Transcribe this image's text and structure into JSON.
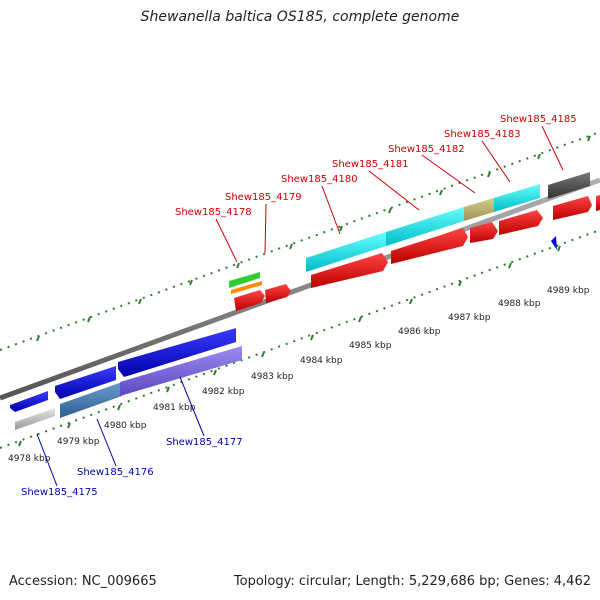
{
  "title": "Shewanella baltica OS185, complete genome",
  "footer": {
    "accession": "Accession: NC_009665",
    "summary": "Topology: circular; Length: 5,229,686 bp; Genes: 4,462"
  },
  "colors": {
    "backbone": "#888888",
    "tick": "#2e7d32",
    "label_top": "#cc0000",
    "label_bottom": "#0000aa",
    "cyan": "#00e5ee",
    "blue": "#0000ee",
    "red": "#ee0000"
  },
  "scale_labels": [
    "4978 kbp",
    "4979 kbp",
    "4980 kbp",
    "4981 kbp",
    "4982 kbp",
    "4983 kbp",
    "4984 kbp",
    "4985 kbp",
    "4986 kbp",
    "4987 kbp",
    "4988 kbp",
    "4989 kbp"
  ],
  "top_labels": [
    "Shew185_4178",
    "Shew185_4179",
    "Shew185_4180",
    "Shew185_4181",
    "Shew185_4182",
    "Shew185_4183",
    "Shew185_4185"
  ],
  "bottom_labels": [
    "Shew185_4177",
    "Shew185_4176",
    "Shew185_4175"
  ]
}
